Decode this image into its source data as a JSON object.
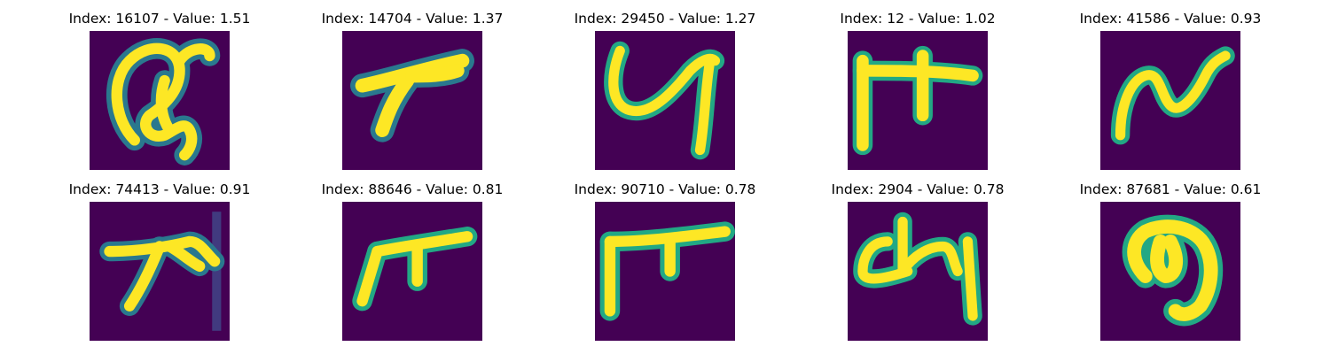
{
  "colors": {
    "background": "#440154",
    "stroke_core": "#fde725",
    "stroke_edge": "#22a884",
    "stroke_halo": "#2a788e",
    "faint": "#414487"
  },
  "grid": [
    {
      "title": "Index: 16107 - Value: 1.51",
      "glyph": "looped-a-glyph"
    },
    {
      "title": "Index: 14704 - Value: 1.37",
      "glyph": "arrow-stroke-glyph"
    },
    {
      "title": "Index: 29450 - Value: 1.27",
      "glyph": "y-like-glyph"
    },
    {
      "title": "Index: 12 - Value: 1.02",
      "glyph": "pi-like-glyph"
    },
    {
      "title": "Index: 41586 - Value: 0.93",
      "glyph": "wave-n-glyph"
    },
    {
      "title": "Index: 74413 - Value: 0.91",
      "glyph": "bent-stroke-glyph"
    },
    {
      "title": "Index: 88646 - Value: 0.81",
      "glyph": "pi-like-glyph"
    },
    {
      "title": "Index: 90710 - Value: 0.78",
      "glyph": "pi-like-glyph"
    },
    {
      "title": "Index: 2904 - Value: 0.78",
      "glyph": "ch-like-glyph"
    },
    {
      "title": "Index: 87681 - Value: 0.61",
      "glyph": "curl-glyph"
    }
  ]
}
